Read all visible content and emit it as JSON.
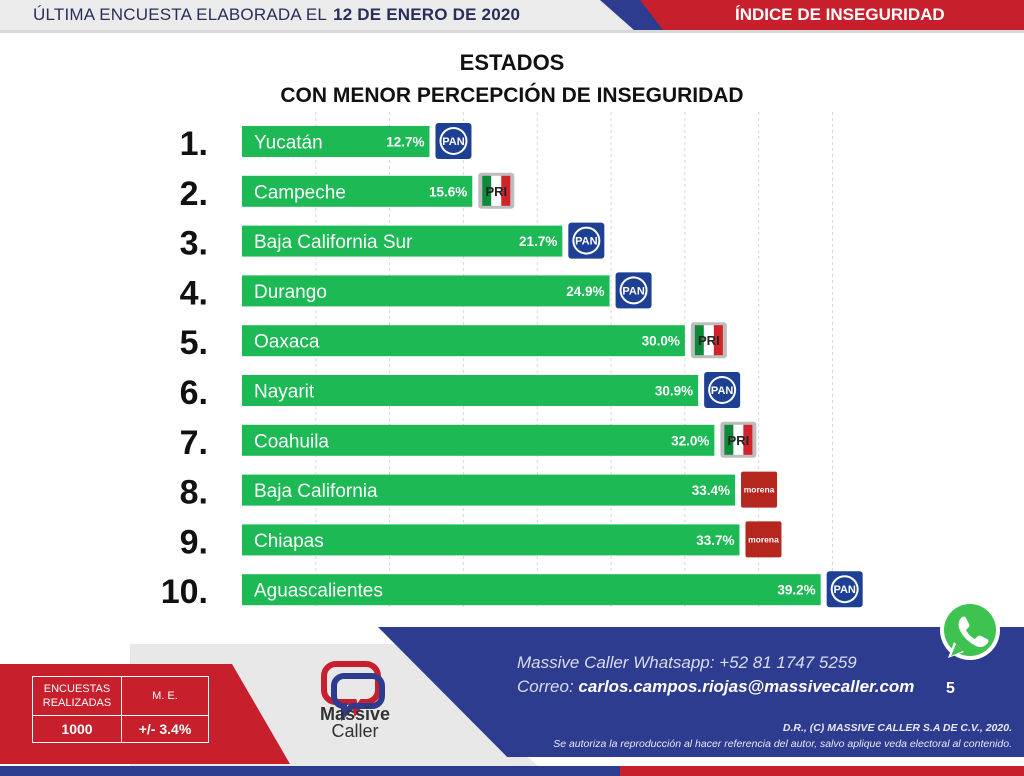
{
  "header": {
    "survey_prefix": "ÚLTIMA ENCUESTA ELABORADA EL",
    "survey_date": "12 DE ENERO DE 2020",
    "section": "ÍNDICE DE INSEGURIDAD"
  },
  "title_line1": "ESTADOS",
  "title_line2": "CON MENOR PERCEPCIÓN DE INSEGURIDAD",
  "colors": {
    "bar": "#1db954",
    "navy": "#2e3c8f",
    "red": "#c81f2d"
  },
  "chart_data": {
    "type": "bar",
    "orientation": "horizontal",
    "title": "ESTADOS CON MENOR PERCEPCIÓN DE INSEGURIDAD",
    "xlim": [
      0,
      42
    ],
    "grid": true,
    "unit": "%",
    "ranks": [
      "1.",
      "2.",
      "3.",
      "4.",
      "5.",
      "6.",
      "7.",
      "8.",
      "9.",
      "10."
    ],
    "categories": [
      "Yucatán",
      "Campeche",
      "Baja California Sur",
      "Durango",
      "Oaxaca",
      "Nayarit",
      "Coahuila",
      "Baja California",
      "Chiapas",
      "Aguascalientes"
    ],
    "values": [
      12.7,
      15.6,
      21.7,
      24.9,
      30.0,
      30.9,
      32.0,
      33.4,
      33.7,
      39.2
    ],
    "value_labels": [
      "12.7%",
      "15.6%",
      "21.7%",
      "24.9%",
      "30.0%",
      "30.9%",
      "32.0%",
      "33.4%",
      "33.7%",
      "39.2%"
    ],
    "parties": [
      "PAN",
      "PRI",
      "PAN",
      "PAN",
      "PRI",
      "PAN",
      "PRI",
      "morena",
      "morena",
      "PAN"
    ]
  },
  "footer": {
    "stats_header_surveys": "ENCUESTAS REALIZADAS",
    "stats_header_me": "M. E.",
    "stats_surveys": "1000",
    "stats_me": "+/- 3.4%",
    "brand_line1": "Massive",
    "brand_line2": "Caller",
    "whatsapp_label": "Massive Caller Whatsapp:",
    "whatsapp_number": "+52   81 1747 5259",
    "email_label": "Correo:",
    "email": "carlos.campos.riojas@massivecaller.com",
    "page": "5",
    "copyright": "D.R., (C) MASSIVE CALLER S.A DE C.V., 2020.",
    "disclaimer": "Se autoriza la reproducción al hacer referencia del autor, salvo aplique veda electoral al contenido."
  }
}
